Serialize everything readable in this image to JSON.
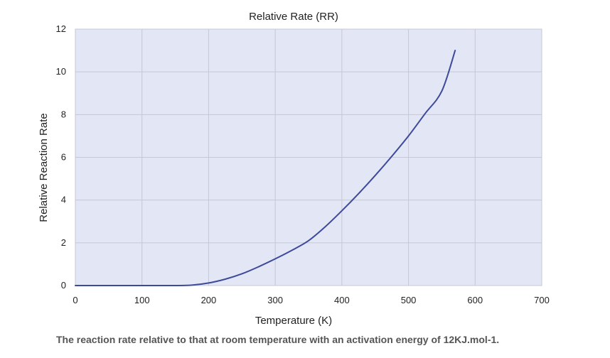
{
  "chart_data": {
    "type": "line",
    "title": "Relative Rate (RR)",
    "xlabel": "Temperature (K)",
    "ylabel": "Relative Reaction Rate",
    "xlim": [
      0,
      700
    ],
    "ylim": [
      0,
      12
    ],
    "xticks": [
      "0",
      "100",
      "200",
      "300",
      "400",
      "500",
      "600",
      "700"
    ],
    "yticks": [
      "0",
      "2",
      "4",
      "6",
      "8",
      "10",
      "12"
    ],
    "grid": true,
    "legend": "none",
    "series": [
      {
        "color": "#3d4a9c",
        "x": [
          0,
          100,
          150,
          175,
          200,
          225,
          250,
          275,
          300,
          325,
          350,
          375,
          400,
          425,
          450,
          475,
          500,
          525,
          550,
          570
        ],
        "y": [
          0,
          0,
          0,
          0.02,
          0.12,
          0.3,
          0.55,
          0.88,
          1.25,
          1.65,
          2.1,
          2.75,
          3.5,
          4.3,
          5.15,
          6.05,
          7.0,
          8.05,
          9.1,
          11.0
        ]
      }
    ]
  },
  "caption": "The reaction rate relative to that at room temperature with an activation energy of 12KJ.mol-1.",
  "colors": {
    "plot_background": "#e3e6f4",
    "grid": "#c5c8d6",
    "line": "#3d4a9c"
  }
}
